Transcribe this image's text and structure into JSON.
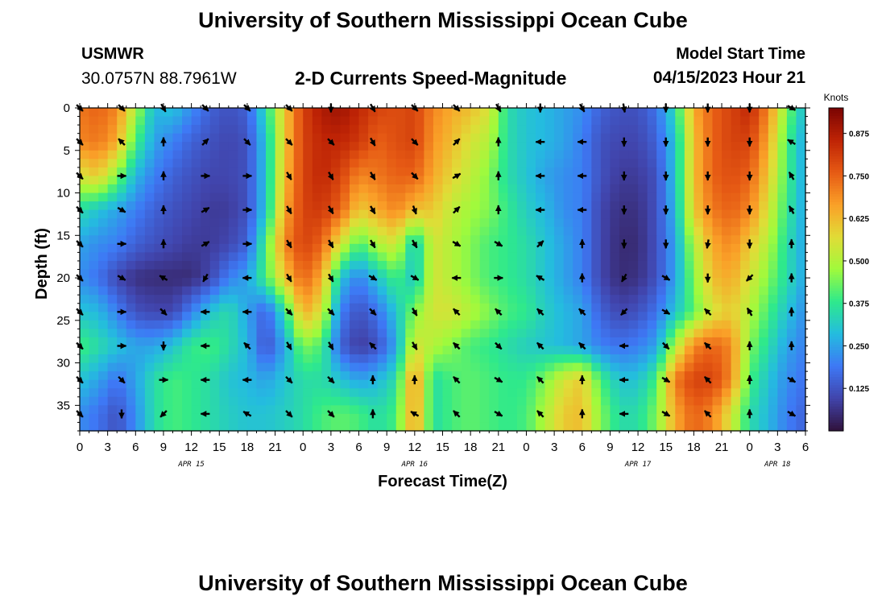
{
  "header": {
    "title": "University of Southern Mississippi Ocean Cube",
    "station_id": "USMWR",
    "coords": "30.0757N  88.7961W",
    "model_label": "Model Start Time",
    "model_time": "04/15/2023 Hour 21"
  },
  "footer": {
    "title": "University of Southern Mississippi Ocean Cube"
  },
  "chart_data": {
    "type": "heatmap",
    "title": "2-D Currents Speed-Magnitude",
    "xlabel": "Forecast Time(Z)",
    "ylabel": "Depth (ft)",
    "x_unit": "hours since Apr 15 00Z",
    "xlim": [
      0,
      78
    ],
    "ylim": [
      0,
      38
    ],
    "y_ticks": [
      0,
      5,
      10,
      15,
      20,
      25,
      30,
      35
    ],
    "x_ticks": [
      {
        "h": 0,
        "label": "0"
      },
      {
        "h": 3,
        "label": "3"
      },
      {
        "h": 6,
        "label": "6"
      },
      {
        "h": 9,
        "label": "9"
      },
      {
        "h": 12,
        "label": "12"
      },
      {
        "h": 15,
        "label": "15"
      },
      {
        "h": 18,
        "label": "18"
      },
      {
        "h": 21,
        "label": "21"
      },
      {
        "h": 24,
        "label": "0"
      },
      {
        "h": 27,
        "label": "3"
      },
      {
        "h": 30,
        "label": "6"
      },
      {
        "h": 33,
        "label": "9"
      },
      {
        "h": 36,
        "label": "12"
      },
      {
        "h": 39,
        "label": "15"
      },
      {
        "h": 42,
        "label": "18"
      },
      {
        "h": 45,
        "label": "21"
      },
      {
        "h": 48,
        "label": "0"
      },
      {
        "h": 51,
        "label": "3"
      },
      {
        "h": 54,
        "label": "6"
      },
      {
        "h": 57,
        "label": "9"
      },
      {
        "h": 60,
        "label": "12"
      },
      {
        "h": 63,
        "label": "15"
      },
      {
        "h": 66,
        "label": "18"
      },
      {
        "h": 69,
        "label": "21"
      },
      {
        "h": 72,
        "label": "0"
      },
      {
        "h": 75,
        "label": "3"
      },
      {
        "h": 78,
        "label": "6"
      }
    ],
    "date_labels": [
      {
        "h": 12,
        "label": "APR 15"
      },
      {
        "h": 36,
        "label": "APR 16"
      },
      {
        "h": 60,
        "label": "APR 17"
      },
      {
        "h": 75,
        "label": "APR 18"
      }
    ],
    "colorbar": {
      "unit": "Knots",
      "min": 0.0,
      "max": 0.95,
      "ticks": [
        0.125,
        0.25,
        0.375,
        0.5,
        0.625,
        0.75,
        0.875
      ],
      "tick_labels": [
        "0.125",
        "0.250",
        "0.375",
        "0.500",
        "0.625",
        "0.750",
        "0.875"
      ]
    },
    "speed_grid": {
      "description": "approximate current speed (knots); rows = depth (ft), columns = forecast hour",
      "depths": [
        0,
        4,
        8,
        12,
        16,
        20,
        24,
        28,
        32,
        36
      ],
      "hours": [
        0,
        2,
        4,
        6,
        8,
        10,
        12,
        14,
        16,
        18,
        20,
        22,
        24,
        26,
        28,
        30,
        32,
        34,
        36,
        38,
        40,
        42,
        44,
        46,
        48,
        50,
        52,
        54,
        56,
        58,
        60,
        62,
        64,
        66,
        68,
        70,
        72,
        74,
        76,
        78
      ],
      "values": [
        [
          0.72,
          0.75,
          0.7,
          0.5,
          0.28,
          0.3,
          0.22,
          0.15,
          0.12,
          0.15,
          0.35,
          0.6,
          0.8,
          0.88,
          0.9,
          0.85,
          0.8,
          0.78,
          0.8,
          0.7,
          0.65,
          0.62,
          0.55,
          0.35,
          0.3,
          0.28,
          0.25,
          0.22,
          0.15,
          0.12,
          0.12,
          0.18,
          0.35,
          0.65,
          0.75,
          0.8,
          0.85,
          0.7,
          0.45,
          0.28
        ],
        [
          0.7,
          0.72,
          0.65,
          0.4,
          0.25,
          0.2,
          0.15,
          0.12,
          0.1,
          0.12,
          0.3,
          0.6,
          0.8,
          0.85,
          0.85,
          0.82,
          0.75,
          0.78,
          0.8,
          0.68,
          0.62,
          0.55,
          0.5,
          0.35,
          0.3,
          0.28,
          0.25,
          0.2,
          0.12,
          0.1,
          0.1,
          0.15,
          0.3,
          0.62,
          0.75,
          0.8,
          0.8,
          0.65,
          0.4,
          0.25
        ],
        [
          0.55,
          0.6,
          0.45,
          0.28,
          0.2,
          0.15,
          0.12,
          0.1,
          0.1,
          0.12,
          0.3,
          0.62,
          0.8,
          0.85,
          0.8,
          0.7,
          0.72,
          0.75,
          0.75,
          0.65,
          0.58,
          0.52,
          0.45,
          0.35,
          0.3,
          0.25,
          0.22,
          0.2,
          0.12,
          0.08,
          0.08,
          0.12,
          0.3,
          0.62,
          0.75,
          0.78,
          0.75,
          0.6,
          0.4,
          0.25
        ],
        [
          0.35,
          0.3,
          0.25,
          0.2,
          0.15,
          0.12,
          0.1,
          0.08,
          0.08,
          0.12,
          0.3,
          0.65,
          0.8,
          0.82,
          0.75,
          0.6,
          0.65,
          0.7,
          0.62,
          0.6,
          0.52,
          0.48,
          0.45,
          0.38,
          0.32,
          0.28,
          0.22,
          0.2,
          0.1,
          0.06,
          0.06,
          0.12,
          0.28,
          0.6,
          0.72,
          0.75,
          0.7,
          0.55,
          0.38,
          0.25
        ],
        [
          0.25,
          0.22,
          0.2,
          0.15,
          0.12,
          0.1,
          0.08,
          0.08,
          0.1,
          0.15,
          0.4,
          0.7,
          0.8,
          0.75,
          0.55,
          0.4,
          0.5,
          0.55,
          0.3,
          0.55,
          0.5,
          0.45,
          0.4,
          0.38,
          0.35,
          0.3,
          0.25,
          0.2,
          0.1,
          0.05,
          0.05,
          0.12,
          0.25,
          0.5,
          0.65,
          0.7,
          0.6,
          0.5,
          0.35,
          0.25
        ],
        [
          0.22,
          0.18,
          0.1,
          0.06,
          0.05,
          0.05,
          0.05,
          0.1,
          0.2,
          0.25,
          0.4,
          0.6,
          0.75,
          0.65,
          0.3,
          0.2,
          0.3,
          0.4,
          0.3,
          0.55,
          0.5,
          0.45,
          0.4,
          0.38,
          0.35,
          0.3,
          0.25,
          0.2,
          0.1,
          0.05,
          0.06,
          0.12,
          0.25,
          0.45,
          0.62,
          0.65,
          0.55,
          0.45,
          0.35,
          0.25
        ],
        [
          0.3,
          0.28,
          0.2,
          0.12,
          0.1,
          0.1,
          0.2,
          0.3,
          0.35,
          0.25,
          0.15,
          0.35,
          0.65,
          0.55,
          0.2,
          0.12,
          0.18,
          0.3,
          0.45,
          0.55,
          0.55,
          0.5,
          0.45,
          0.4,
          0.38,
          0.32,
          0.28,
          0.25,
          0.15,
          0.1,
          0.12,
          0.18,
          0.3,
          0.42,
          0.55,
          0.6,
          0.5,
          0.4,
          0.3,
          0.22
        ],
        [
          0.4,
          0.35,
          0.3,
          0.25,
          0.25,
          0.3,
          0.38,
          0.4,
          0.35,
          0.28,
          0.12,
          0.25,
          0.45,
          0.4,
          0.15,
          0.08,
          0.12,
          0.25,
          0.55,
          0.5,
          0.45,
          0.4,
          0.38,
          0.35,
          0.32,
          0.3,
          0.28,
          0.25,
          0.2,
          0.18,
          0.2,
          0.25,
          0.5,
          0.7,
          0.75,
          0.7,
          0.45,
          0.35,
          0.25,
          0.2
        ],
        [
          0.3,
          0.25,
          0.18,
          0.25,
          0.35,
          0.4,
          0.38,
          0.35,
          0.3,
          0.28,
          0.25,
          0.3,
          0.35,
          0.35,
          0.3,
          0.25,
          0.28,
          0.35,
          0.7,
          0.35,
          0.4,
          0.42,
          0.4,
          0.38,
          0.38,
          0.45,
          0.55,
          0.6,
          0.4,
          0.3,
          0.3,
          0.4,
          0.72,
          0.8,
          0.8,
          0.7,
          0.4,
          0.3,
          0.22,
          0.18
        ],
        [
          0.22,
          0.18,
          0.12,
          0.22,
          0.35,
          0.4,
          0.38,
          0.35,
          0.32,
          0.3,
          0.3,
          0.32,
          0.35,
          0.4,
          0.42,
          0.4,
          0.35,
          0.4,
          0.68,
          0.35,
          0.4,
          0.42,
          0.4,
          0.38,
          0.4,
          0.5,
          0.6,
          0.62,
          0.45,
          0.35,
          0.35,
          0.45,
          0.65,
          0.75,
          0.7,
          0.55,
          0.35,
          0.28,
          0.2,
          0.15
        ]
      ]
    },
    "vector_grid": {
      "description": "current direction arrows (degrees, clockwise from up/north)",
      "depths": [
        0,
        4,
        8,
        12,
        16,
        20,
        24,
        28,
        32,
        36
      ],
      "hours": [
        0,
        4.5,
        9,
        13.5,
        18,
        22.5,
        27,
        31.5,
        36,
        40.5,
        45,
        49.5,
        54,
        58.5,
        63,
        67.5,
        72,
        76.5
      ],
      "directions": [
        [
          135,
          135,
          150,
          135,
          135,
          135,
          180,
          150,
          135,
          135,
          150,
          180,
          150,
          170,
          180,
          180,
          180,
          120
        ],
        [
          135,
          315,
          0,
          45,
          135,
          135,
          135,
          150,
          135,
          45,
          0,
          270,
          270,
          180,
          180,
          180,
          180,
          300
        ],
        [
          135,
          90,
          0,
          90,
          90,
          150,
          150,
          150,
          135,
          60,
          0,
          270,
          270,
          180,
          180,
          180,
          180,
          330
        ],
        [
          135,
          120,
          0,
          60,
          90,
          150,
          150,
          150,
          160,
          45,
          0,
          270,
          270,
          180,
          180,
          180,
          180,
          330
        ],
        [
          135,
          90,
          0,
          60,
          90,
          150,
          150,
          150,
          150,
          120,
          120,
          45,
          0,
          180,
          180,
          190,
          180,
          0
        ],
        [
          135,
          120,
          300,
          210,
          270,
          150,
          150,
          120,
          120,
          270,
          90,
          300,
          0,
          210,
          120,
          180,
          225,
          0
        ],
        [
          135,
          90,
          135,
          270,
          270,
          135,
          135,
          135,
          150,
          315,
          315,
          315,
          315,
          225,
          120,
          315,
          330,
          0
        ],
        [
          135,
          90,
          180,
          270,
          315,
          150,
          150,
          315,
          150,
          315,
          135,
          315,
          315,
          270,
          135,
          315,
          0,
          0
        ],
        [
          135,
          135,
          90,
          270,
          270,
          135,
          135,
          0,
          0,
          315,
          120,
          315,
          0,
          270,
          120,
          315,
          0,
          120
        ],
        [
          135,
          180,
          225,
          270,
          300,
          135,
          135,
          0,
          300,
          315,
          120,
          315,
          0,
          270,
          120,
          315,
          0,
          120
        ]
      ]
    }
  }
}
